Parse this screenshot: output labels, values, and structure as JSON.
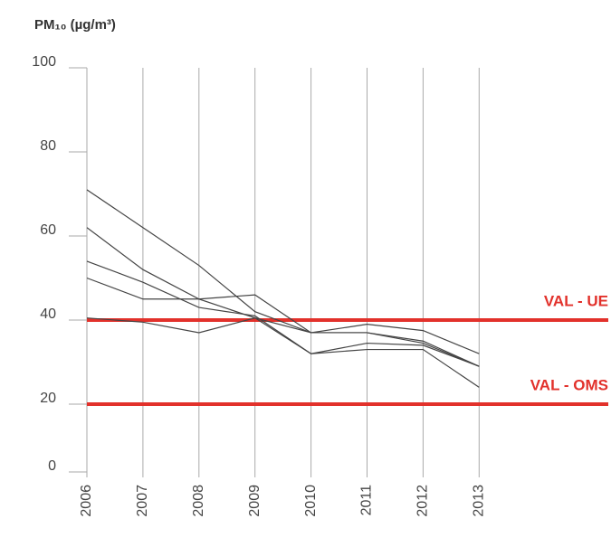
{
  "chart_data": {
    "type": "line",
    "title": "PM₁₀ (µg/m³)",
    "categories": [
      "2006",
      "2007",
      "2008",
      "2009",
      "2010",
      "2011",
      "2012",
      "2013"
    ],
    "series": [
      {
        "color": "#444444",
        "values": [
          71,
          62,
          53,
          42,
          37,
          37,
          34.5,
          29
        ]
      },
      {
        "color": "#444444",
        "values": [
          62,
          52,
          45,
          46,
          37,
          39,
          37.5,
          32
        ]
      },
      {
        "color": "#444444",
        "values": [
          54,
          49,
          43,
          41,
          32,
          34.5,
          34,
          29
        ]
      },
      {
        "color": "#444444",
        "values": [
          50,
          45,
          45,
          40.5,
          32,
          33,
          33,
          24
        ]
      },
      {
        "color": "#444444",
        "values": [
          40.5,
          39.5,
          37,
          40.5,
          37,
          37,
          35,
          29
        ]
      }
    ],
    "reference_lines": [
      {
        "label": "VAL - UE",
        "value": 40,
        "color": "#e2312b"
      },
      {
        "label": "VAL - OMS",
        "value": 20,
        "color": "#e2312b"
      }
    ],
    "ylim": [
      0,
      100
    ],
    "yticks": [
      0,
      20,
      40,
      60,
      80,
      100
    ],
    "grid": true
  }
}
